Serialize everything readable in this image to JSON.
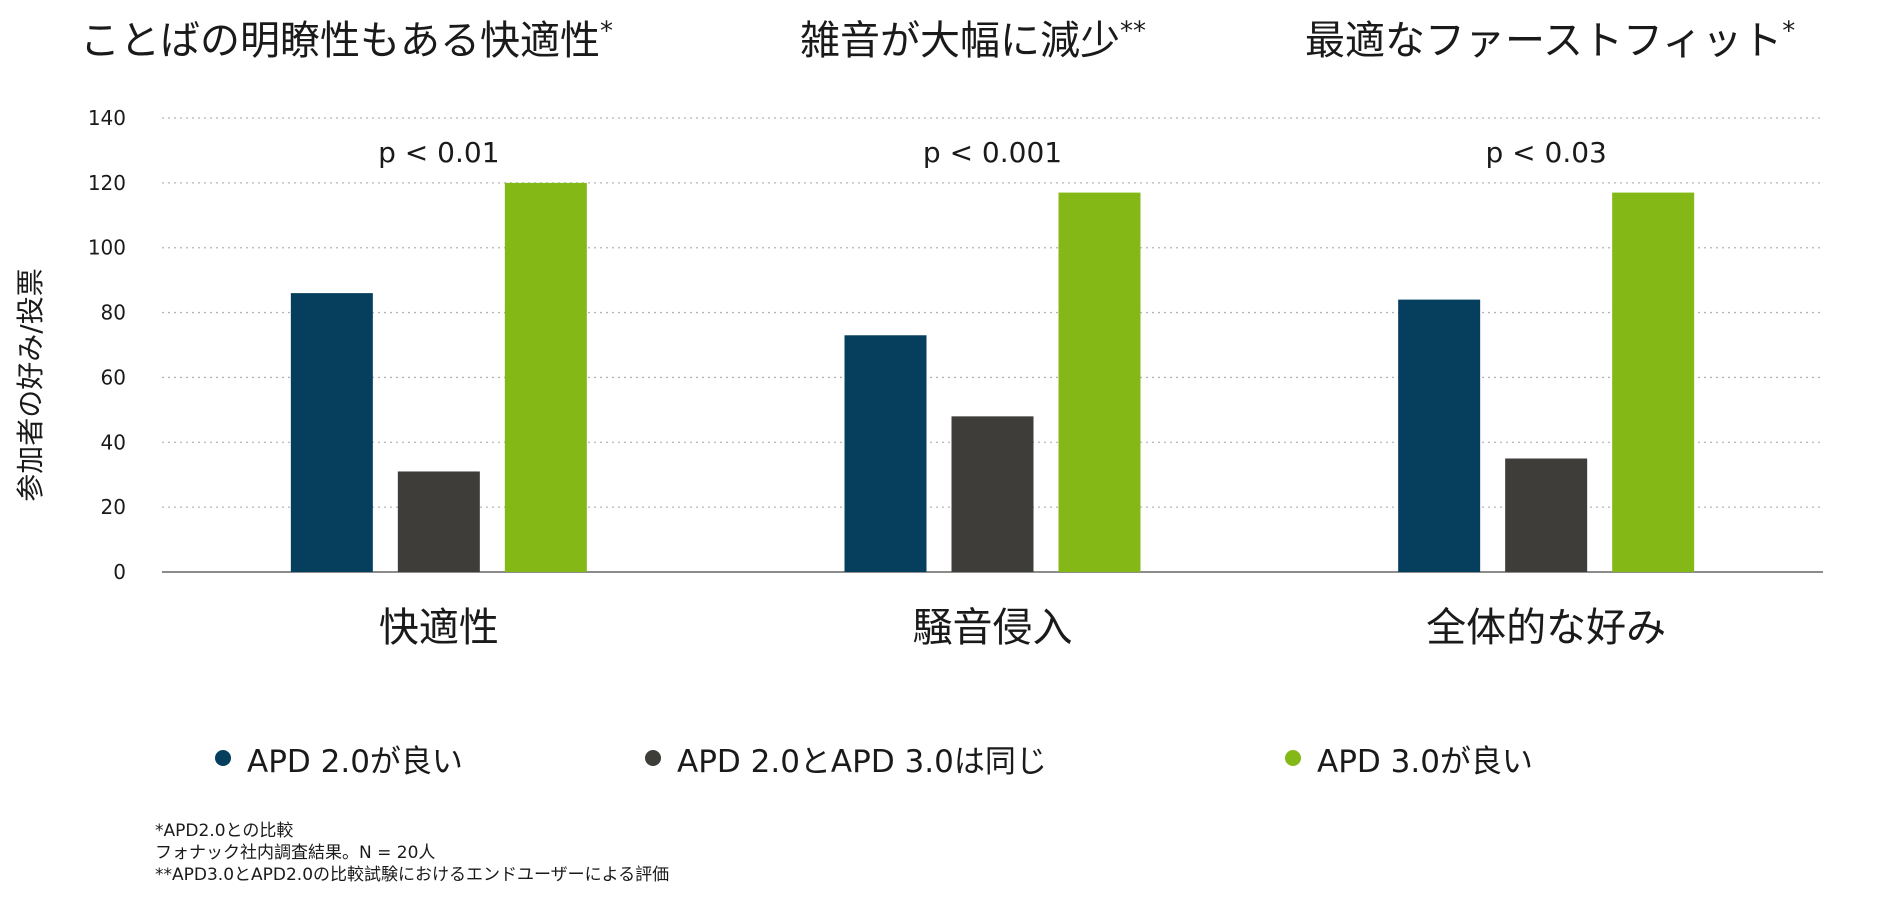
{
  "headlines": [
    {
      "text": "ことばの明瞭性もある快適性",
      "mark": "*"
    },
    {
      "text": "雑音が大幅に減少",
      "mark": "**"
    },
    {
      "text": "最適なファーストフィット",
      "mark": "*"
    }
  ],
  "chart_data": {
    "type": "bar",
    "ylabel": "参加者の好み/投票",
    "ylim": [
      0,
      140
    ],
    "yticks": [
      0,
      20,
      40,
      60,
      80,
      100,
      120,
      140
    ],
    "grid": true,
    "legend_position": "bottom",
    "categories": [
      "快適性",
      "騒音侵入",
      "全体的な好み"
    ],
    "annotations": [
      "p < 0.01",
      "p < 0.001",
      "p < 0.03"
    ],
    "series": [
      {
        "name": "APD 2.0が良い",
        "color": "#063f5e",
        "values": [
          86,
          73,
          84
        ]
      },
      {
        "name": "APD 2.0とAPD 3.0は同じ",
        "color": "#3f3d39",
        "values": [
          31,
          48,
          35
        ]
      },
      {
        "name": "APD 3.0が良い",
        "color": "#84b817",
        "values": [
          120,
          117,
          117
        ]
      }
    ]
  },
  "notes": [
    "*APD2.0との比較",
    "フォナック社内調査結果。N = 20人",
    "**APD3.0とAPD2.0の比較試験におけるエンドユーザーによる評価"
  ]
}
